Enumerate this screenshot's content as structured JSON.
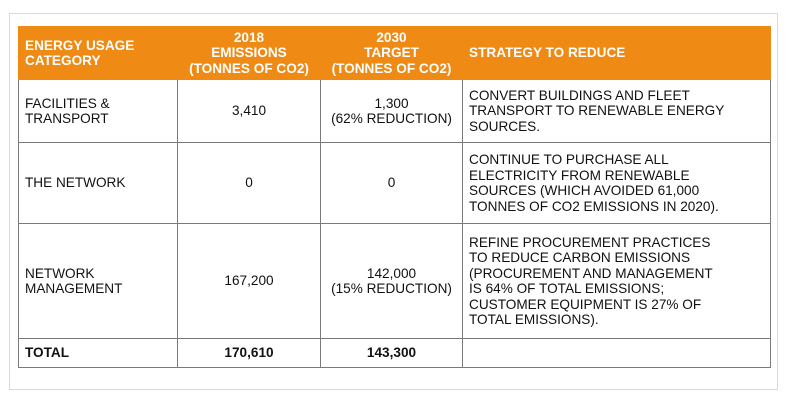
{
  "header": {
    "category": [
      "ENERGY USAGE",
      "CATEGORY"
    ],
    "emissions_2018": [
      "2018",
      "EMISSIONS",
      "(TONNES OF CO2)"
    ],
    "target_2030": [
      "2030",
      "TARGET",
      "(TONNES OF CO2)"
    ],
    "strategy": [
      "STRATEGY TO REDUCE"
    ]
  },
  "rows": [
    {
      "category": [
        "FACILITIES &",
        "TRANSPORT"
      ],
      "emissions_2018": "3,410",
      "target_2030": [
        "1,300",
        "(62% REDUCTION)"
      ],
      "strategy": [
        "CONVERT BUILDINGS AND FLEET",
        "TRANSPORT TO RENEWABLE ENERGY",
        "SOURCES."
      ]
    },
    {
      "category": [
        "THE NETWORK"
      ],
      "emissions_2018": "0",
      "target_2030": [
        "0"
      ],
      "strategy": [
        "CONTINUE TO PURCHASE ALL",
        "ELECTRICITY FROM RENEWABLE",
        "SOURCES (WHICH AVOIDED 61,000",
        "TONNES OF CO2 EMISSIONS IN 2020)."
      ]
    },
    {
      "category": [
        "NETWORK",
        "MANAGEMENT"
      ],
      "emissions_2018": "167,200",
      "target_2030": [
        "142,000",
        "(15% REDUCTION)"
      ],
      "strategy": [
        "REFINE PROCUREMENT PRACTICES",
        "TO REDUCE CARBON EMISSIONS",
        "(PROCUREMENT AND MANAGEMENT",
        "IS 64% OF TOTAL EMISSIONS;",
        "CUSTOMER EQUIPMENT IS 27% OF",
        "TOTAL EMISSIONS)."
      ]
    }
  ],
  "total": {
    "label": "TOTAL",
    "emissions_2018": "170,610",
    "target_2030": "143,300",
    "strategy": ""
  },
  "colors": {
    "header_bg": "#ef8a14",
    "header_text": "#ffffff",
    "border": "#7a7a7a"
  }
}
